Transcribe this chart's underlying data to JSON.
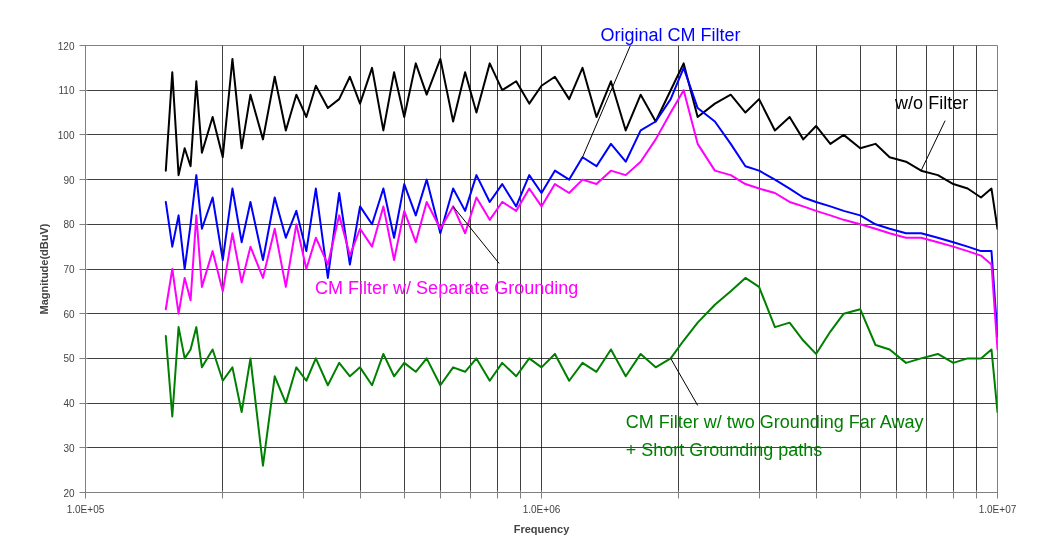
{
  "chart_data": {
    "type": "line",
    "xlabel": "Frequency",
    "ylabel": "Magnitude(dBuV)",
    "log": "x",
    "grid": true,
    "legend": false,
    "line_style": "solid",
    "marker": "none",
    "xlim": [
      100000,
      10000000
    ],
    "ylim": [
      20,
      120
    ],
    "xticks": [
      {
        "value": 100000,
        "label": "1.0E+05"
      },
      {
        "value": 200000,
        "label": null
      },
      {
        "value": 300000,
        "label": null
      },
      {
        "value": 400000,
        "label": null
      },
      {
        "value": 500000,
        "label": null
      },
      {
        "value": 600000,
        "label": null
      },
      {
        "value": 700000,
        "label": null
      },
      {
        "value": 800000,
        "label": null
      },
      {
        "value": 900000,
        "label": null
      },
      {
        "value": 1000000,
        "label": "1.0E+06"
      },
      {
        "value": 2000000,
        "label": null
      },
      {
        "value": 3000000,
        "label": null
      },
      {
        "value": 4000000,
        "label": null
      },
      {
        "value": 5000000,
        "label": null
      },
      {
        "value": 6000000,
        "label": null
      },
      {
        "value": 7000000,
        "label": null
      },
      {
        "value": 8000000,
        "label": null
      },
      {
        "value": 9000000,
        "label": null
      },
      {
        "value": 10000000,
        "label": "1.0E+07"
      }
    ],
    "yticks": [
      20,
      30,
      40,
      50,
      60,
      70,
      80,
      90,
      100,
      110,
      120
    ],
    "x": [
      150000,
      155000,
      160000,
      165000,
      170000,
      175000,
      180000,
      190000,
      200000,
      210000,
      220000,
      230000,
      245000,
      260000,
      275000,
      290000,
      305000,
      320000,
      340000,
      360000,
      380000,
      400000,
      425000,
      450000,
      475000,
      500000,
      530000,
      560000,
      600000,
      640000,
      680000,
      720000,
      770000,
      820000,
      880000,
      940000,
      1000000,
      1070000,
      1150000,
      1230000,
      1320000,
      1420000,
      1530000,
      1650000,
      1780000,
      1920000,
      2050000,
      2200000,
      2400000,
      2600000,
      2800000,
      3000000,
      3250000,
      3500000,
      3750000,
      4000000,
      4300000,
      4600000,
      5000000,
      5400000,
      5800000,
      6300000,
      6800000,
      7400000,
      8000000,
      8600000,
      9200000,
      9700000,
      10000000
    ],
    "series": [
      {
        "name": "w/o Filter",
        "color": "#000000",
        "values": [
          92,
          114,
          91,
          97,
          93,
          112,
          96,
          104,
          95,
          117,
          97,
          109,
          99,
          113,
          101,
          109,
          104,
          111,
          106,
          108,
          113,
          107,
          115,
          101,
          114,
          104,
          116,
          109,
          117,
          103,
          114,
          105,
          116,
          110,
          112,
          107,
          111,
          113,
          108,
          115,
          104,
          112,
          101,
          109,
          103,
          110,
          116,
          104,
          107,
          109,
          105,
          108,
          101,
          104,
          99,
          102,
          98,
          100,
          97,
          98,
          95,
          94,
          92,
          91,
          89,
          88,
          86,
          88,
          79
        ]
      },
      {
        "name": "Original CM Filter",
        "color": "#0000ff",
        "values": [
          85,
          75,
          82,
          70,
          80,
          91,
          79,
          86,
          72,
          88,
          76,
          85,
          72,
          86,
          77,
          83,
          74,
          88,
          68,
          87,
          71,
          84,
          80,
          88,
          77,
          89,
          82,
          90,
          78,
          88,
          83,
          91,
          85,
          89,
          84,
          91,
          87,
          92,
          90,
          95,
          93,
          98,
          94,
          101,
          103,
          108,
          115,
          106,
          103,
          98,
          93,
          92,
          90,
          88,
          86,
          85,
          84,
          83,
          82,
          80,
          79,
          78,
          78,
          77,
          76,
          75,
          74,
          74,
          55
        ]
      },
      {
        "name": "CM Filter w/ Separate Grounding",
        "color": "#ff00ff",
        "values": [
          61,
          70,
          60,
          68,
          63,
          82,
          66,
          74,
          65,
          78,
          67,
          75,
          68,
          79,
          66,
          80,
          70,
          77,
          71,
          82,
          73,
          79,
          75,
          84,
          72,
          83,
          76,
          85,
          79,
          84,
          78,
          86,
          81,
          85,
          83,
          88,
          84,
          89,
          87,
          90,
          89,
          92,
          91,
          94,
          99,
          105,
          110,
          98,
          92,
          91,
          89,
          88,
          87,
          85,
          84,
          83,
          82,
          81,
          80,
          79,
          78,
          77,
          77,
          76,
          75,
          74,
          73,
          71,
          52
        ]
      },
      {
        "name": "CM Filter w/ two Grounding Far Away\n+ Short Grounding paths",
        "color": "#008000",
        "values": [
          55,
          37,
          57,
          50,
          52,
          57,
          48,
          52,
          45,
          48,
          38,
          50,
          26,
          46,
          40,
          48,
          45,
          50,
          44,
          49,
          46,
          48,
          44,
          51,
          46,
          49,
          47,
          50,
          44,
          48,
          47,
          50,
          45,
          49,
          46,
          50,
          48,
          51,
          45,
          49,
          47,
          52,
          46,
          51,
          48,
          50,
          54,
          58,
          62,
          65,
          68,
          66,
          57,
          58,
          54,
          51,
          56,
          60,
          61,
          53,
          52,
          49,
          50,
          51,
          49,
          50,
          50,
          52,
          38
        ]
      }
    ]
  }
}
